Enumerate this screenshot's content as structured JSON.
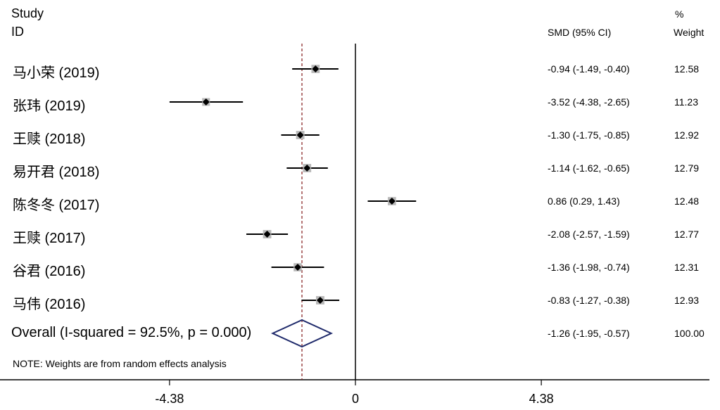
{
  "header": {
    "study": "Study",
    "id": "ID",
    "smd": "SMD (95% CI)",
    "pct": "%",
    "weight": "Weight"
  },
  "chart_data": {
    "type": "forest",
    "xlim": [
      -6.6,
      6.6
    ],
    "xticks": [
      "-4.38",
      "0",
      "4.38"
    ],
    "xtick_values": [
      -4.38,
      0,
      4.38
    ],
    "reference_line": -1.26,
    "studies": [
      {
        "label": "马小荣 (2019)",
        "smd": -0.94,
        "lo": -1.49,
        "hi": -0.4,
        "est_text": "-0.94 (-1.49, -0.40)",
        "weight": "12.58"
      },
      {
        "label": "张玮 (2019)",
        "smd": -3.52,
        "lo": -4.38,
        "hi": -2.65,
        "est_text": "-3.52 (-4.38, -2.65)",
        "weight": "11.23"
      },
      {
        "label": "王赎 (2018)",
        "smd": -1.3,
        "lo": -1.75,
        "hi": -0.85,
        "est_text": "-1.30 (-1.75, -0.85)",
        "weight": "12.92"
      },
      {
        "label": "易开君 (2018)",
        "smd": -1.14,
        "lo": -1.62,
        "hi": -0.65,
        "est_text": "-1.14 (-1.62, -0.65)",
        "weight": "12.79"
      },
      {
        "label": "陈冬冬 (2017)",
        "smd": 0.86,
        "lo": 0.29,
        "hi": 1.43,
        "est_text": "0.86 (0.29, 1.43)",
        "weight": "12.48"
      },
      {
        "label": "王赎 (2017)",
        "smd": -2.08,
        "lo": -2.57,
        "hi": -1.59,
        "est_text": "-2.08 (-2.57, -1.59)",
        "weight": "12.77"
      },
      {
        "label": "谷君 (2016)",
        "smd": -1.36,
        "lo": -1.98,
        "hi": -0.74,
        "est_text": "-1.36 (-1.98, -0.74)",
        "weight": "12.31"
      },
      {
        "label": "马伟 (2016)",
        "smd": -0.83,
        "lo": -1.27,
        "hi": -0.38,
        "est_text": "-0.83 (-1.27, -0.38)",
        "weight": "12.93"
      }
    ],
    "overall": {
      "label": "Overall  (I-squared = 92.5%, p = 0.000)",
      "smd": -1.26,
      "lo": -1.95,
      "hi": -0.57,
      "est_text": "-1.26 (-1.95, -0.57)",
      "weight": "100.00"
    },
    "note": "NOTE: Weights are from random effects analysis",
    "colors": {
      "line": "#000000",
      "diamond": "#1f2a6b",
      "ref_line": "#8b2a2a",
      "box": "#b9b9b9"
    }
  }
}
